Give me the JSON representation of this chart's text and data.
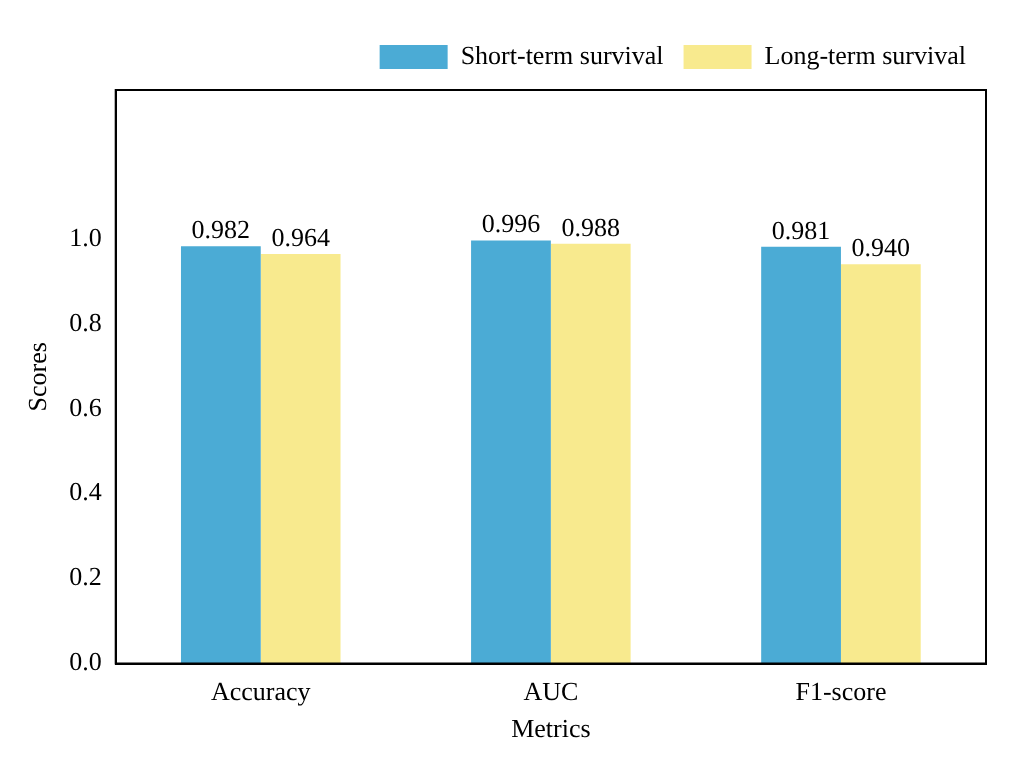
{
  "chart_data": {
    "type": "bar",
    "xlabel": "Metrics",
    "ylabel": "Scores",
    "categories": [
      "Accuracy",
      "AUC",
      "F1-score"
    ],
    "series": [
      {
        "name": "Short-term survival",
        "color": "#4babd5",
        "values": [
          0.982,
          0.996,
          0.981
        ],
        "value_labels": [
          "0.982",
          "0.996",
          "0.981"
        ]
      },
      {
        "name": "Long-term survival",
        "color": "#f8ea8e",
        "values": [
          0.964,
          0.988,
          0.94
        ],
        "value_labels": [
          "0.964",
          "0.988",
          "0.940"
        ]
      }
    ],
    "ylim": [
      0,
      1.35
    ],
    "yticks": [
      {
        "value": 0,
        "label": "0.0"
      },
      {
        "value": 0.2,
        "label": "0.2"
      },
      {
        "value": 0.4,
        "label": "0.4"
      },
      {
        "value": 0.6,
        "label": "0.6"
      },
      {
        "value": 0.8,
        "label": "0.8"
      },
      {
        "value": 1,
        "label": "1.0"
      }
    ],
    "legend": "top right",
    "grid": false
  }
}
